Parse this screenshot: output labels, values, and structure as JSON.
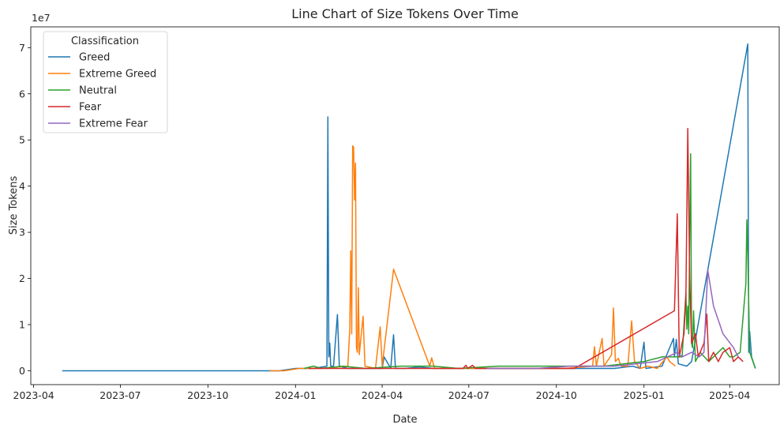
{
  "chart_data": {
    "type": "line",
    "title": "Line Chart of Size Tokens Over Time",
    "xlabel": "Date",
    "ylabel": "Size Tokens",
    "y_multiplier_label": "1e7",
    "xlim": [
      "2023-03-29",
      "2025-05-23"
    ],
    "ylim": [
      -0.3,
      7.45
    ],
    "x_ticks": [
      "2023-04",
      "2023-07",
      "2023-10",
      "2024-01",
      "2024-04",
      "2024-07",
      "2024-10",
      "2025-01",
      "2025-04"
    ],
    "y_ticks": [
      0,
      1,
      2,
      3,
      4,
      5,
      6,
      7
    ],
    "grid": false,
    "legend_title": "Classification",
    "legend_position": "top-left",
    "series": [
      {
        "name": "Greed",
        "color": "#1f77b4",
        "points": [
          [
            "2023-05-01",
            0.0
          ],
          [
            "2023-09-01",
            0.0
          ],
          [
            "2023-12-15",
            0.0
          ],
          [
            "2024-01-01",
            0.05
          ],
          [
            "2024-01-20",
            0.05
          ],
          [
            "2024-02-03",
            0.1
          ],
          [
            "2024-02-04",
            5.5
          ],
          [
            "2024-02-05",
            0.3
          ],
          [
            "2024-02-06",
            0.6
          ],
          [
            "2024-02-07",
            0.1
          ],
          [
            "2024-02-10",
            0.1
          ],
          [
            "2024-02-14",
            1.22
          ],
          [
            "2024-02-16",
            0.1
          ],
          [
            "2024-02-25",
            0.05
          ],
          [
            "2024-03-10",
            0.05
          ],
          [
            "2024-04-01",
            0.05
          ],
          [
            "2024-04-03",
            0.3
          ],
          [
            "2024-04-10",
            0.05
          ],
          [
            "2024-04-13",
            0.78
          ],
          [
            "2024-04-15",
            0.05
          ],
          [
            "2024-04-25",
            0.05
          ],
          [
            "2024-05-10",
            0.08
          ],
          [
            "2024-05-25",
            0.05
          ],
          [
            "2024-06-10",
            0.05
          ],
          [
            "2024-07-01",
            0.05
          ],
          [
            "2024-07-20",
            0.05
          ],
          [
            "2024-08-05",
            0.05
          ],
          [
            "2024-10-01",
            0.05
          ],
          [
            "2024-12-01",
            0.05
          ],
          [
            "2024-12-20",
            0.1
          ],
          [
            "2024-12-28",
            0.05
          ],
          [
            "2025-01-01",
            0.62
          ],
          [
            "2025-01-03",
            0.05
          ],
          [
            "2025-01-20",
            0.1
          ],
          [
            "2025-02-01",
            0.7
          ],
          [
            "2025-02-02",
            0.3
          ],
          [
            "2025-02-04",
            0.68
          ],
          [
            "2025-02-06",
            0.15
          ],
          [
            "2025-02-15",
            0.1
          ],
          [
            "2025-02-20",
            0.2
          ],
          [
            "2025-04-20",
            7.08
          ],
          [
            "2025-04-21",
            0.4
          ],
          [
            "2025-04-22",
            0.85
          ],
          [
            "2025-04-24",
            0.3
          ],
          [
            "2025-04-28",
            0.05
          ]
        ]
      },
      {
        "name": "Extreme Greed",
        "color": "#ff7f0e",
        "points": [
          [
            "2023-12-05",
            0.0
          ],
          [
            "2023-12-20",
            0.0
          ],
          [
            "2024-01-05",
            0.05
          ],
          [
            "2024-01-25",
            0.05
          ],
          [
            "2024-02-25",
            0.1
          ],
          [
            "2024-02-27",
            0.9
          ],
          [
            "2024-02-28",
            2.6
          ],
          [
            "2024-02-29",
            0.8
          ],
          [
            "2024-03-01",
            4.87
          ],
          [
            "2024-03-02",
            4.85
          ],
          [
            "2024-03-03",
            3.7
          ],
          [
            "2024-03-04",
            4.5
          ],
          [
            "2024-03-05",
            0.5
          ],
          [
            "2024-03-06",
            0.4
          ],
          [
            "2024-03-07",
            1.8
          ],
          [
            "2024-03-08",
            0.35
          ],
          [
            "2024-03-12",
            1.18
          ],
          [
            "2024-03-14",
            0.1
          ],
          [
            "2024-03-25",
            0.05
          ],
          [
            "2024-03-30",
            0.95
          ],
          [
            "2024-04-01",
            0.1
          ],
          [
            "2024-04-13",
            2.2
          ],
          [
            "2024-05-21",
            0.1
          ],
          [
            "2024-05-23",
            0.28
          ],
          [
            "2024-05-26",
            0.05
          ],
          [
            "2024-06-10",
            0.05
          ],
          [
            "2024-07-01",
            0.05
          ],
          [
            "2024-08-01",
            0.05
          ],
          [
            "2024-10-10",
            0.05
          ],
          [
            "2024-11-08",
            0.1
          ],
          [
            "2024-11-10",
            0.52
          ],
          [
            "2024-11-12",
            0.1
          ],
          [
            "2024-11-18",
            0.7
          ],
          [
            "2024-11-20",
            0.1
          ],
          [
            "2024-11-28",
            0.35
          ],
          [
            "2024-11-30",
            1.36
          ],
          [
            "2024-12-02",
            0.2
          ],
          [
            "2024-12-05",
            0.27
          ],
          [
            "2024-12-08",
            0.1
          ],
          [
            "2024-12-15",
            0.1
          ],
          [
            "2024-12-19",
            1.08
          ],
          [
            "2024-12-22",
            0.2
          ],
          [
            "2024-12-28",
            0.05
          ],
          [
            "2025-01-05",
            0.1
          ],
          [
            "2025-01-15",
            0.05
          ],
          [
            "2025-01-25",
            0.3
          ],
          [
            "2025-01-28",
            0.2
          ],
          [
            "2025-02-03",
            0.1
          ]
        ]
      },
      {
        "name": "Neutral",
        "color": "#2ca02c",
        "points": [
          [
            "2024-01-10",
            0.05
          ],
          [
            "2024-01-20",
            0.1
          ],
          [
            "2024-01-28",
            0.05
          ],
          [
            "2024-02-20",
            0.1
          ],
          [
            "2024-03-15",
            0.05
          ],
          [
            "2024-04-20",
            0.1
          ],
          [
            "2024-05-25",
            0.1
          ],
          [
            "2024-06-20",
            0.05
          ],
          [
            "2024-08-01",
            0.1
          ],
          [
            "2024-10-01",
            0.1
          ],
          [
            "2024-11-20",
            0.1
          ],
          [
            "2025-01-01",
            0.2
          ],
          [
            "2025-01-20",
            0.3
          ],
          [
            "2025-02-10",
            0.3
          ],
          [
            "2025-02-14",
            1.7
          ],
          [
            "2025-02-15",
            0.9
          ],
          [
            "2025-02-16",
            1.4
          ],
          [
            "2025-02-17",
            0.8
          ],
          [
            "2025-02-18",
            3.0
          ],
          [
            "2025-02-19",
            4.7
          ],
          [
            "2025-02-20",
            0.6
          ],
          [
            "2025-02-21",
            0.5
          ],
          [
            "2025-02-22",
            1.3
          ],
          [
            "2025-02-24",
            0.2
          ],
          [
            "2025-03-01",
            0.4
          ],
          [
            "2025-03-10",
            0.2
          ],
          [
            "2025-03-25",
            0.5
          ],
          [
            "2025-04-01",
            0.3
          ],
          [
            "2025-04-05",
            0.3
          ],
          [
            "2025-04-12",
            0.4
          ],
          [
            "2025-04-18",
            1.9
          ],
          [
            "2025-04-19",
            3.27
          ],
          [
            "2025-04-20",
            2.5
          ],
          [
            "2025-04-22",
            0.4
          ],
          [
            "2025-04-28",
            0.05
          ]
        ]
      },
      {
        "name": "Fear",
        "color": "#d62728",
        "points": [
          [
            "2024-01-15",
            0.05
          ],
          [
            "2024-02-15",
            0.05
          ],
          [
            "2024-03-20",
            0.05
          ],
          [
            "2024-05-15",
            0.05
          ],
          [
            "2024-06-25",
            0.05
          ],
          [
            "2024-06-28",
            0.12
          ],
          [
            "2024-06-30",
            0.05
          ],
          [
            "2024-07-05",
            0.12
          ],
          [
            "2024-07-08",
            0.05
          ],
          [
            "2024-08-10",
            0.05
          ],
          [
            "2024-10-20",
            0.05
          ],
          [
            "2025-02-02",
            1.3
          ],
          [
            "2025-02-05",
            3.4
          ],
          [
            "2025-02-07",
            0.3
          ],
          [
            "2025-02-12",
            0.8
          ],
          [
            "2025-02-14",
            1.6
          ],
          [
            "2025-02-16",
            5.25
          ],
          [
            "2025-02-18",
            2.0
          ],
          [
            "2025-02-20",
            0.6
          ],
          [
            "2025-02-24",
            0.8
          ],
          [
            "2025-02-27",
            0.3
          ],
          [
            "2025-03-05",
            0.6
          ],
          [
            "2025-03-08",
            1.23
          ],
          [
            "2025-03-10",
            0.2
          ],
          [
            "2025-03-15",
            0.4
          ],
          [
            "2025-03-20",
            0.2
          ],
          [
            "2025-03-25",
            0.4
          ],
          [
            "2025-04-01",
            0.5
          ],
          [
            "2025-04-05",
            0.2
          ],
          [
            "2025-04-10",
            0.3
          ],
          [
            "2025-04-15",
            0.2
          ]
        ]
      },
      {
        "name": "Extreme Fear",
        "color": "#9467bd",
        "points": [
          [
            "2024-07-20",
            0.05
          ],
          [
            "2024-09-10",
            0.05
          ],
          [
            "2024-10-15",
            0.1
          ],
          [
            "2024-12-01",
            0.1
          ],
          [
            "2025-01-15",
            0.2
          ],
          [
            "2025-02-05",
            0.4
          ],
          [
            "2025-02-10",
            0.3
          ],
          [
            "2025-02-20",
            0.4
          ],
          [
            "2025-02-28",
            0.3
          ],
          [
            "2025-03-05",
            0.4
          ],
          [
            "2025-03-09",
            2.18
          ],
          [
            "2025-03-15",
            1.4
          ],
          [
            "2025-03-25",
            0.8
          ],
          [
            "2025-04-05",
            0.5
          ],
          [
            "2025-04-10",
            0.3
          ]
        ]
      }
    ]
  }
}
